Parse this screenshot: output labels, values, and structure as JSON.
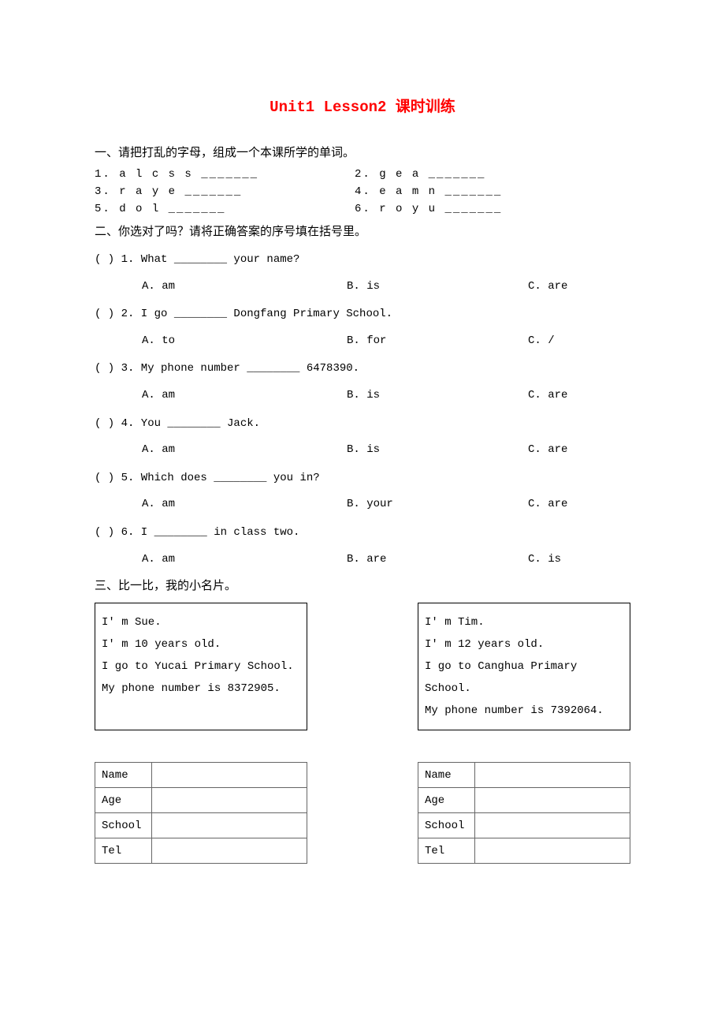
{
  "title": "Unit1 Lesson2 课时训练",
  "section1": {
    "heading": "一、请把打乱的字母，组成一个本课所学的单词。",
    "items": [
      {
        "num": "1.",
        "scramble": "a l c s s",
        "pair_num": "2.",
        "pair_scramble": "g e a"
      },
      {
        "num": "3.",
        "scramble": "r a y e",
        "pair_num": "4.",
        "pair_scramble": "e a m n"
      },
      {
        "num": "5.",
        "scramble": "d o l",
        "pair_num": "6.",
        "pair_scramble": "r o y u"
      }
    ],
    "blank": "_______"
  },
  "section2": {
    "heading": "二、你选对了吗？请将正确答案的序号填在括号里。",
    "questions": [
      {
        "num": "1.",
        "pre": "What ",
        "post": " your name?",
        "a": "am",
        "b": "is",
        "c": "are"
      },
      {
        "num": "2.",
        "pre": "I go ",
        "post": " Dongfang Primary School.",
        "a": "to",
        "b": "for",
        "c": "/"
      },
      {
        "num": "3.",
        "pre": "My phone number ",
        "post": " 6478390.",
        "a": "am",
        "b": "is",
        "c": "are"
      },
      {
        "num": "4.",
        "pre": "You ",
        "post": " Jack.",
        "a": "am",
        "b": "is",
        "c": "are"
      },
      {
        "num": "5.",
        "pre": "Which does ",
        "post": " you in?",
        "a": "am",
        "b": "your",
        "c": "are"
      },
      {
        "num": "6.",
        "pre": "I ",
        "post": " in class two.",
        "a": "am",
        "b": "are",
        "c": "is"
      }
    ],
    "paren": "(  )",
    "blank": "________"
  },
  "section3": {
    "heading": "三、比一比，我的小名片。",
    "card_left_lines": [
      "I' m Sue.",
      "I' m 10 years old.",
      "I go to Yucai Primary School.",
      "My phone number is 8372905."
    ],
    "card_right_lines": [
      "I' m Tim.",
      "I' m 12 years old.",
      "I go to Canghua Primary School.",
      "My phone number is 7392064."
    ],
    "table_rows": [
      "Name",
      "Age",
      "School",
      "Tel"
    ]
  },
  "colors": {
    "title_color": "#ff0000",
    "text_color": "#000000",
    "border_color": "#666666",
    "background": "#ffffff"
  },
  "fonts": {
    "title": "Courier New",
    "body_en": "Courier New",
    "body_cn": "SimSun"
  }
}
